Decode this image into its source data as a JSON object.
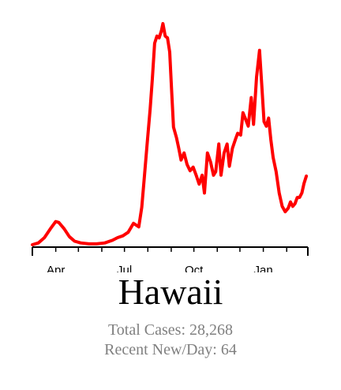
{
  "chart_data": {
    "type": "line",
    "title": "Hawaii",
    "xlabel": "",
    "ylabel": "",
    "x_ticks": [
      "Apr",
      "Jul",
      "Oct",
      "Jan"
    ],
    "x_range": [
      "2020-03-01",
      "2021-03-01"
    ],
    "grid": false,
    "legend": "none",
    "series_color": "#ff0000",
    "series": [
      {
        "x": [
          "2020-03-01",
          "2020-03-09",
          "2020-03-17",
          "2020-03-25",
          "2020-04-01",
          "2020-04-05",
          "2020-04-12",
          "2020-04-19",
          "2020-04-26",
          "2020-05-04",
          "2020-05-15",
          "2020-05-25",
          "2020-06-05",
          "2020-06-15",
          "2020-06-22",
          "2020-06-29",
          "2020-07-06",
          "2020-07-13",
          "2020-07-20",
          "2020-07-24",
          "2020-07-27",
          "2020-07-31",
          "2020-08-04",
          "2020-08-07",
          "2020-08-10",
          "2020-08-13",
          "2020-08-16",
          "2020-08-19",
          "2020-08-21",
          "2020-08-24",
          "2020-08-27",
          "2020-08-30",
          "2020-09-01",
          "2020-09-04",
          "2020-09-08",
          "2020-09-11",
          "2020-09-14",
          "2020-09-18",
          "2020-09-22",
          "2020-09-26",
          "2020-09-30",
          "2020-10-04",
          "2020-10-08",
          "2020-10-12",
          "2020-10-15",
          "2020-10-19",
          "2020-10-23",
          "2020-10-27",
          "2020-10-30",
          "2020-11-03",
          "2020-11-06",
          "2020-11-10",
          "2020-11-14",
          "2020-11-17",
          "2020-11-21",
          "2020-11-25",
          "2020-11-28",
          "2020-12-02",
          "2020-12-05",
          "2020-12-08",
          "2020-12-12",
          "2020-12-16",
          "2020-12-19",
          "2020-12-23",
          "2020-12-27",
          "2020-12-30",
          "2021-01-02",
          "2021-01-05",
          "2021-01-08",
          "2021-01-11",
          "2021-01-14",
          "2021-01-18",
          "2021-01-22",
          "2021-01-26",
          "2021-01-30",
          "2021-02-03",
          "2021-02-06",
          "2021-02-09",
          "2021-02-12",
          "2021-02-15",
          "2021-02-18",
          "2021-02-21",
          "2021-02-24",
          "2021-02-27"
        ],
        "values": [
          0,
          2,
          8,
          18,
          26,
          25,
          18,
          9,
          4,
          2,
          1,
          1,
          2,
          5,
          8,
          10,
          14,
          24,
          20,
          42,
          72,
          112,
          152,
          186,
          226,
          234,
          232,
          240,
          248,
          234,
          232,
          216,
          182,
          132,
          120,
          108,
          95,
          103,
          90,
          83,
          87,
          78,
          68,
          78,
          58,
          103,
          93,
          78,
          82,
          113,
          78,
          103,
          113,
          88,
          108,
          118,
          125,
          123,
          148,
          142,
          133,
          165,
          135,
          188,
          218,
          178,
          138,
          133,
          142,
          118,
          98,
          82,
          58,
          43,
          37,
          41,
          48,
          43,
          46,
          53,
          53,
          58,
          69,
          77
        ]
      }
    ]
  },
  "title": "Hawaii",
  "stats": {
    "total_cases": "Total Cases: 28,268",
    "recent_new_per_day": "Recent New/Day: 64"
  }
}
